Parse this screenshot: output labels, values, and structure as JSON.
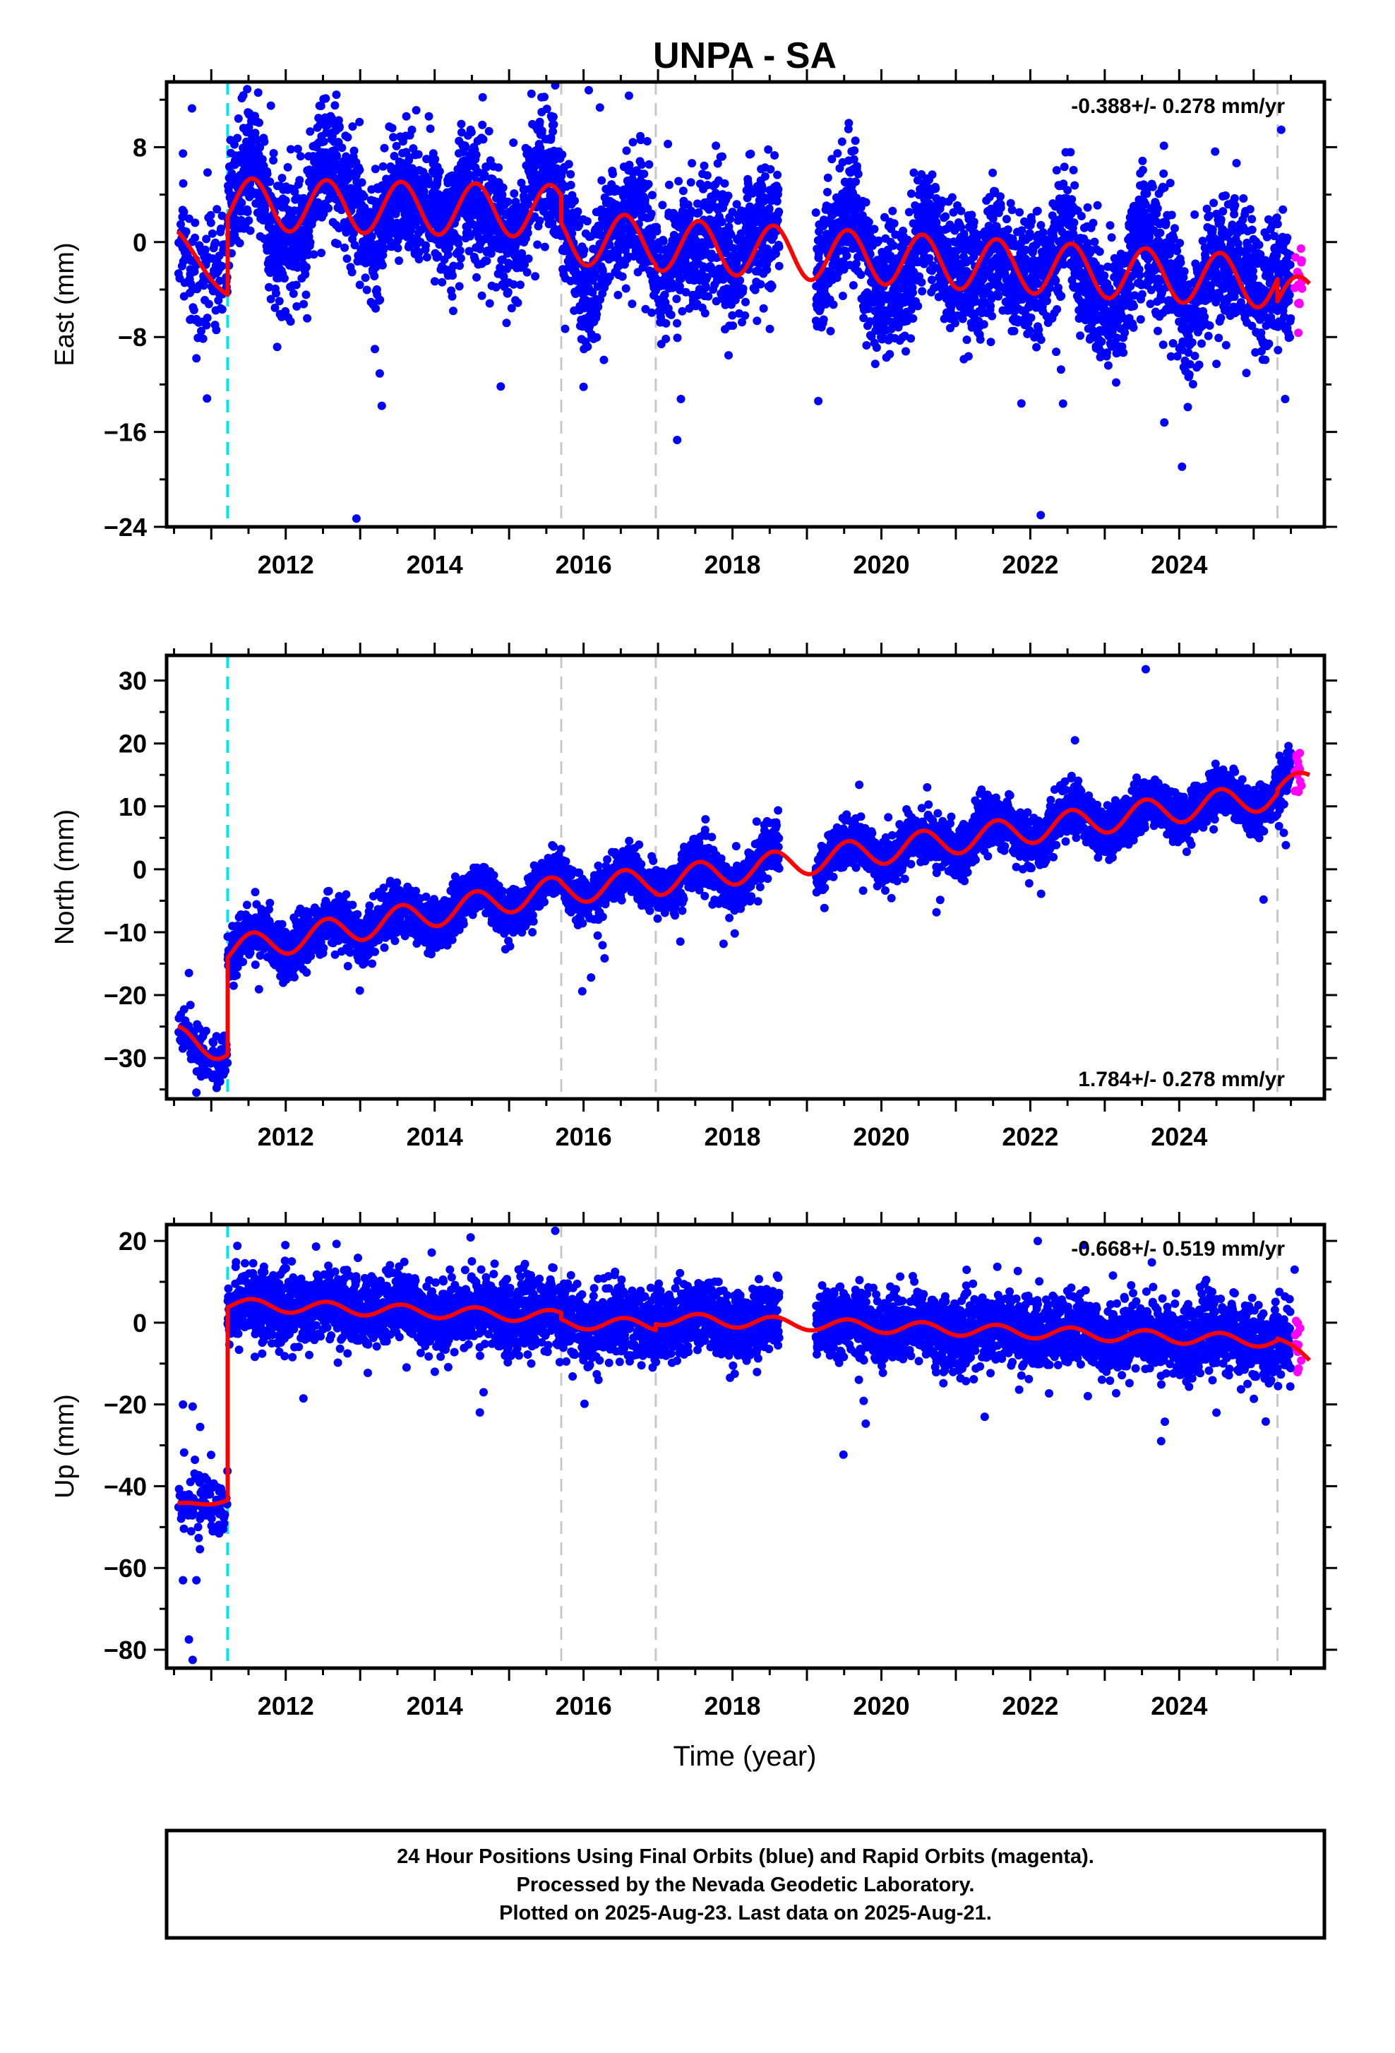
{
  "chart_data": {
    "type": "scatter",
    "title": "UNPA - SA",
    "xlabel": "Time (year)",
    "xlim": [
      2010.4,
      2025.95
    ],
    "x_ticks": [
      2012,
      2014,
      2016,
      2018,
      2020,
      2022,
      2024
    ],
    "colors": {
      "final": "#0000ff",
      "rapid": "#ff00ff",
      "model": "#ff0000",
      "antenna_offset": "#00e5ee",
      "event_line": "#c8c8c8"
    },
    "antenna_change": [
      2011.22
    ],
    "events": [
      2015.7,
      2016.97,
      2025.32
    ],
    "data_gaps": [
      [
        2018.63,
        2019.12
      ]
    ],
    "panels": [
      {
        "name": "east",
        "ylabel": "East (mm)",
        "ylim": [
          -24,
          13.5
        ],
        "y_ticks": [
          8,
          0,
          -8,
          -16,
          -24
        ],
        "rate_label": "-0.388+/- 0.278 mm/yr",
        "rate_position": "top-right",
        "offset": 6.0,
        "scatter_sd": 2.6,
        "segments": [
          {
            "x0": 2010.55,
            "x1": 2011.22,
            "y0": 0.4,
            "y1": -4.2,
            "amp": 0.5,
            "phase": 0.3
          },
          {
            "x0": 2011.22,
            "x1": 2015.7,
            "y0": 3.2,
            "y1": 2.6,
            "amp": 2.2,
            "phase": 0.3
          },
          {
            "x0": 2015.7,
            "x1": 2016.97,
            "y0": 0.3,
            "y1": 0.0,
            "amp": 2.2,
            "phase": 0.3
          },
          {
            "x0": 2016.97,
            "x1": 2025.32,
            "y0": -0.2,
            "y1": -3.4,
            "amp": 2.2,
            "phase": 0.3
          },
          {
            "x0": 2025.32,
            "x1": 2025.75,
            "y0": -5.2,
            "y1": -4.0,
            "amp": 1.6,
            "phase": 0.3
          }
        ],
        "outliers": [
          [
            2012.95,
            -23.3
          ],
          [
            2016.07,
            12.8
          ],
          [
            2011.8,
            11.5
          ],
          [
            2015.3,
            12.5
          ],
          [
            2010.8,
            -9.8
          ],
          [
            2016.0,
            -12.2
          ],
          [
            2021.88,
            -13.6
          ],
          [
            2023.8,
            -15.2
          ],
          [
            2019.8,
            -8.7
          ],
          [
            2014.25,
            -5.8
          ]
        ]
      },
      {
        "name": "north",
        "ylabel": "North (mm)",
        "ylim": [
          -36.5,
          34
        ],
        "y_ticks": [
          30,
          20,
          10,
          0,
          -10,
          -20,
          -30
        ],
        "rate_label": "1.784+/- 0.278 mm/yr",
        "rate_position": "bottom-right",
        "offset": -2.0,
        "scatter_sd": 1.9,
        "segments": [
          {
            "x0": 2010.55,
            "x1": 2011.22,
            "y0": -27.0,
            "y1": -28.5,
            "amp": 2.0,
            "phase": 0.3
          },
          {
            "x0": 2011.22,
            "x1": 2015.7,
            "y0": -13.0,
            "y1": -3.2,
            "amp": 2.2,
            "phase": 0.3
          },
          {
            "x0": 2015.7,
            "x1": 2016.97,
            "y0": -3.4,
            "y1": -1.8,
            "amp": 2.2,
            "phase": 0.3
          },
          {
            "x0": 2016.97,
            "x1": 2025.32,
            "y0": -2.0,
            "y1": 11.8,
            "amp": 2.2,
            "phase": 0.3
          },
          {
            "x0": 2025.32,
            "x1": 2025.75,
            "y0": 12.5,
            "y1": 14.5,
            "amp": 1.6,
            "phase": 0.3
          }
        ],
        "outliers": [
          [
            2023.55,
            31.8
          ],
          [
            2010.8,
            -35.5
          ],
          [
            2010.7,
            -16.5
          ],
          [
            2022.6,
            20.5
          ],
          [
            2016.1,
            -17.2
          ],
          [
            2017.3,
            -11.5
          ],
          [
            2018.03,
            -10.2
          ],
          [
            2025.5,
            18.5
          ],
          [
            2011.3,
            -18.5
          ]
        ]
      },
      {
        "name": "up",
        "ylabel": "Up (mm)",
        "ylim": [
          -84.5,
          24
        ],
        "y_ticks": [
          20,
          0,
          -20,
          -40,
          -60,
          -80
        ],
        "rate_label": "-0.668+/- 0.519 mm/yr",
        "rate_position": "top-right",
        "offset": 1.0,
        "scatter_sd": 4.2,
        "segments": [
          {
            "x0": 2010.55,
            "x1": 2011.22,
            "y0": -45.0,
            "y1": -43.0,
            "amp": 0.8,
            "phase": 0.3
          },
          {
            "x0": 2011.22,
            "x1": 2015.7,
            "y0": 4.5,
            "y1": 1.5,
            "amp": 1.5,
            "phase": 0.3
          },
          {
            "x0": 2015.7,
            "x1": 2016.97,
            "y0": 0.0,
            "y1": -0.5,
            "amp": 1.5,
            "phase": 0.3
          },
          {
            "x0": 2016.97,
            "x1": 2025.32,
            "y0": 1.0,
            "y1": -4.5,
            "amp": 1.5,
            "phase": 0.3
          },
          {
            "x0": 2025.32,
            "x1": 2025.75,
            "y0": -4.0,
            "y1": -9.5,
            "amp": 1.0,
            "phase": 0.3
          }
        ],
        "outliers": [
          [
            2015.62,
            22.5
          ],
          [
            2010.75,
            -82.5
          ],
          [
            2010.7,
            -77.5
          ],
          [
            2010.62,
            -63.0
          ],
          [
            2010.8,
            -63.0
          ],
          [
            2010.62,
            -20.0
          ],
          [
            2010.75,
            -20.5
          ],
          [
            2010.85,
            -25.5
          ],
          [
            2011.35,
            18.8
          ],
          [
            2024.5,
            -22.0
          ],
          [
            2025.55,
            13.0
          ],
          [
            2022.1,
            20.0
          ],
          [
            2016.2,
            -14.0
          ]
        ]
      }
    ]
  },
  "footer": {
    "line1": "24 Hour Positions Using Final Orbits (blue) and Rapid Orbits (magenta).",
    "line2": "Processed by the Nevada Geodetic Laboratory.",
    "line3": "Plotted on 2025-Aug-23. Last data on 2025-Aug-21."
  }
}
